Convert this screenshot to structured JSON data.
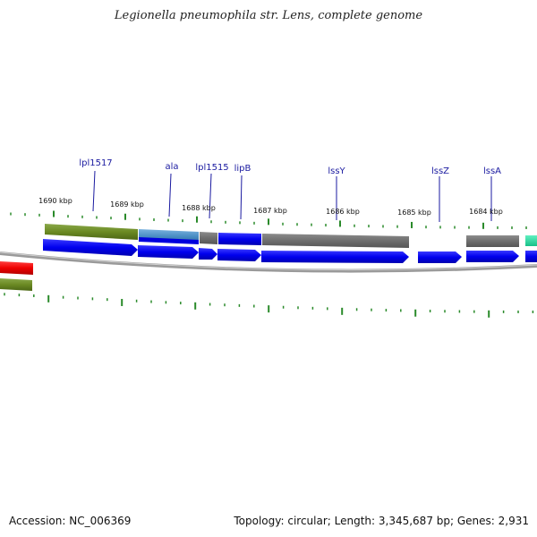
{
  "title": "Legionella pneumophila str. Lens, complete genome",
  "footer": {
    "accession": "Accession: NC_006369",
    "summary": "Topology: circular; Length: 3,345,687 bp; Genes: 2,931"
  },
  "kbp_labels": [
    {
      "text": "1690 kbp"
    },
    {
      "text": "1689 kbp"
    },
    {
      "text": "1688 kbp"
    },
    {
      "text": "1687 kbp"
    },
    {
      "text": "1686 kbp"
    },
    {
      "text": "1685 kbp"
    },
    {
      "text": "1684 kbp"
    }
  ],
  "gene_labels": [
    {
      "text": "lpl1517"
    },
    {
      "text": "ala"
    },
    {
      "text": "lpl1515"
    },
    {
      "text": "lipB"
    },
    {
      "text": "lssY"
    },
    {
      "text": "lssZ"
    },
    {
      "text": "lssA"
    }
  ],
  "colors": {
    "cds": "#0000ee",
    "olive": "#6b8a23",
    "steel": "#4a8ec4",
    "gray": "#707070",
    "red": "#ee0000",
    "teal": "#22e0a0",
    "tick": "#2a8a2a",
    "backbone": "#8a8a8a",
    "label": "#1a1aa0"
  }
}
